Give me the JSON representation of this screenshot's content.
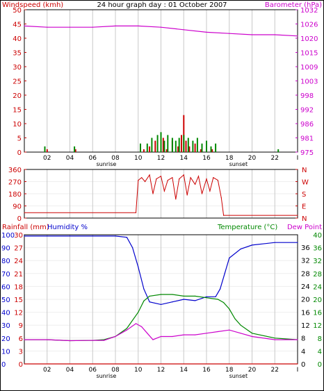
{
  "title": "24 hour graph day : 01 October 2007",
  "colors": {
    "wind": "#cc0000",
    "gust": "#008800",
    "barometer": "#cc00cc",
    "rain": "#cc0000",
    "humidity": "#0000cc",
    "temperature": "#008800",
    "dewpoint": "#cc00cc",
    "grid": "#c8c8c8",
    "axis": "#000000"
  },
  "time_axis": {
    "ticks": [
      "02",
      "04",
      "06",
      "08",
      "10",
      "12",
      "14",
      "16",
      "18",
      "20",
      "22",
      "I"
    ],
    "sunrise_label": "sunrise",
    "sunset_label": "sunset",
    "sunrise_hour": 7.2,
    "sunset_hour": 18.8,
    "range": [
      0,
      24
    ]
  },
  "chart_data": [
    {
      "type": "line",
      "panel": "wind-barometer",
      "left_axis_label": "Windspeed (kmh)",
      "right_axis_label": "Barometer (hPa)",
      "left_ticks": [
        "50",
        "45",
        "40",
        "35",
        "30",
        "25",
        "20",
        "15",
        "10",
        "5",
        "0"
      ],
      "right_ticks": [
        "1032",
        "1026",
        "1020",
        "1015",
        "1009",
        "1003",
        "998",
        "992",
        "986",
        "981",
        "975"
      ],
      "ylim_left": [
        0,
        50
      ],
      "ylim_right": [
        975,
        1032
      ],
      "series": [
        {
          "kind": "barometer",
          "x": [
            0,
            2,
            4,
            6,
            8,
            10,
            12,
            14,
            16,
            18,
            20,
            22,
            24
          ],
          "values": [
            1025.5,
            1025.0,
            1025.0,
            1025.0,
            1025.5,
            1025.5,
            1025.0,
            1024.0,
            1023.0,
            1022.5,
            1022.0,
            1022.0,
            1021.5
          ]
        },
        {
          "kind": "wind",
          "x": [
            2.0,
            4.5,
            10.5,
            11.0,
            11.5,
            12.0,
            12.2,
            12.5,
            13.0,
            13.5,
            13.8,
            14.0,
            14.2,
            14.5,
            15.0,
            15.5,
            16.0,
            16.5
          ],
          "values": [
            1,
            1,
            1,
            2,
            4,
            2,
            5,
            1,
            4,
            2,
            6,
            13,
            4,
            2,
            3,
            1,
            2,
            1
          ]
        },
        {
          "kind": "gust",
          "x": [
            1.8,
            4.4,
            10.2,
            10.8,
            11.2,
            11.7,
            12.0,
            12.3,
            12.6,
            13.0,
            13.3,
            13.6,
            14.0,
            14.4,
            14.8,
            15.2,
            15.6,
            16.0,
            16.4,
            16.8,
            22.3
          ],
          "values": [
            2,
            2,
            3,
            3,
            5,
            6,
            7,
            4,
            6,
            5,
            4,
            5,
            6,
            5,
            4,
            5,
            3,
            4,
            2,
            3,
            1
          ]
        }
      ]
    },
    {
      "type": "line",
      "panel": "wind-direction",
      "left_ticks": [
        "360",
        "270",
        "180",
        "90",
        "0"
      ],
      "right_ticks": [
        "N",
        "W",
        "S",
        "E",
        "N"
      ],
      "ylim": [
        0,
        360
      ],
      "series": [
        {
          "kind": "direction",
          "x": [
            0,
            9.8,
            10.0,
            10.3,
            10.6,
            11.0,
            11.3,
            11.6,
            12.0,
            12.3,
            12.6,
            13.0,
            13.3,
            13.6,
            14.0,
            14.3,
            14.6,
            15.0,
            15.3,
            15.6,
            16.0,
            16.3,
            16.6,
            17.0,
            17.3,
            17.5,
            24
          ],
          "values": [
            40,
            40,
            280,
            300,
            270,
            320,
            180,
            290,
            310,
            200,
            280,
            300,
            140,
            290,
            320,
            170,
            300,
            250,
            310,
            180,
            290,
            200,
            300,
            280,
            150,
            20,
            20
          ]
        }
      ]
    },
    {
      "type": "line",
      "panel": "rain-humidity-temperature",
      "left_axis_label_rain": "Rainfall (mm)",
      "left_axis_label_humidity": "Humidity %",
      "right_axis_label_temp": "Temperature (°C)",
      "right_axis_label_dew": "Dew Point",
      "humidity_ticks": [
        "100",
        "90",
        "80",
        "70",
        "60",
        "50",
        "40",
        "30",
        "20",
        "10",
        "0"
      ],
      "rain_ticks": [
        "30",
        "27",
        "24",
        "21",
        "18",
        "15",
        "12",
        "9",
        "6",
        "3",
        "0"
      ],
      "temp_ticks_col1": [
        "36",
        "32",
        "28",
        "24",
        "20",
        "16",
        "12",
        "8",
        "4",
        "0"
      ],
      "temp_ticks_col2": [
        "40",
        "36",
        "32",
        "28",
        "24",
        "20",
        "16",
        "12",
        "8",
        "4",
        "0"
      ],
      "ylim_humidity": [
        0,
        100
      ],
      "ylim_temp": [
        0,
        40
      ],
      "series": [
        {
          "kind": "humidity",
          "x": [
            0,
            2,
            4,
            6,
            8,
            9,
            9.5,
            10,
            10.5,
            11,
            12,
            13,
            14,
            15,
            16,
            16.8,
            17.2,
            17.6,
            18,
            19,
            20,
            22,
            24
          ],
          "values": [
            99,
            99,
            99,
            99,
            99,
            98,
            90,
            75,
            58,
            48,
            46,
            48,
            50,
            49,
            52,
            52,
            58,
            70,
            82,
            89,
            92,
            94,
            94
          ]
        },
        {
          "kind": "temperature",
          "x": [
            0,
            2,
            4,
            6,
            7,
            8,
            9,
            10,
            10.5,
            11,
            12,
            13,
            14,
            15,
            16,
            17,
            17.5,
            18,
            18.5,
            19,
            20,
            22,
            24
          ],
          "values": [
            7.5,
            7.5,
            7.2,
            7.3,
            7.5,
            8.5,
            11,
            16,
            19.5,
            21,
            21.5,
            21.5,
            21,
            21,
            20.5,
            20,
            19,
            17,
            14,
            12,
            9.5,
            8,
            7.5
          ]
        },
        {
          "kind": "dewpoint",
          "x": [
            0,
            2,
            4,
            6,
            7,
            8,
            9,
            9.8,
            10.3,
            10.8,
            11.3,
            12,
            13,
            14,
            15,
            16,
            17,
            18,
            19,
            20,
            22,
            24
          ],
          "values": [
            7.5,
            7.5,
            7.2,
            7.3,
            7.3,
            8.5,
            10.5,
            12.5,
            11.5,
            9.5,
            7.5,
            8.5,
            8.5,
            9,
            9,
            9.5,
            10,
            10.5,
            9.5,
            8.5,
            7.5,
            7.5
          ]
        },
        {
          "kind": "rain",
          "x": [
            0,
            24
          ],
          "values": [
            0,
            0
          ]
        }
      ]
    }
  ]
}
